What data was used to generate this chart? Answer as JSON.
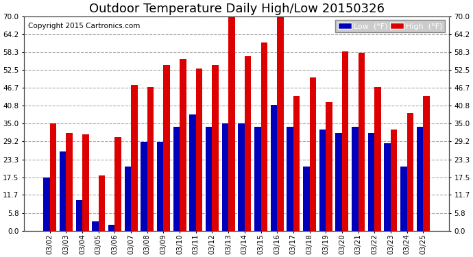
{
  "title": "Outdoor Temperature Daily High/Low 20150326",
  "copyright": "Copyright 2015 Cartronics.com",
  "legend_low_label": "Low  (°F)",
  "legend_high_label": "High  (°F)",
  "low_color": "#0000bb",
  "high_color": "#dd0000",
  "bg_color": "#ffffff",
  "plot_bg_color": "#ffffff",
  "grid_color": "#aaaaaa",
  "dates": [
    "03/02",
    "03/03",
    "03/04",
    "03/05",
    "03/06",
    "03/07",
    "03/08",
    "03/09",
    "03/10",
    "03/11",
    "03/12",
    "03/13",
    "03/14",
    "03/15",
    "03/16",
    "03/17",
    "03/18",
    "03/19",
    "03/20",
    "03/21",
    "03/22",
    "03/23",
    "03/24",
    "03/25"
  ],
  "lows": [
    17.5,
    26.0,
    10.0,
    3.0,
    2.0,
    21.0,
    29.0,
    29.0,
    34.0,
    38.0,
    34.0,
    35.0,
    35.0,
    34.0,
    41.0,
    34.0,
    21.0,
    33.0,
    32.0,
    34.0,
    32.0,
    28.5,
    21.0,
    34.0
  ],
  "highs": [
    35.0,
    32.0,
    31.5,
    18.0,
    30.5,
    47.5,
    47.0,
    54.0,
    56.0,
    53.0,
    54.0,
    70.0,
    57.0,
    61.5,
    72.0,
    44.0,
    50.0,
    42.0,
    58.5,
    58.0,
    47.0,
    33.0,
    38.5,
    44.0
  ],
  "ylim": [
    0.0,
    70.0
  ],
  "yticks": [
    0.0,
    5.8,
    11.7,
    17.5,
    23.3,
    29.2,
    35.0,
    40.8,
    46.7,
    52.5,
    58.3,
    64.2,
    70.0
  ],
  "bar_width": 0.4,
  "title_fontsize": 13,
  "copyright_fontsize": 7.5,
  "tick_fontsize": 7.5,
  "legend_fontsize": 8
}
